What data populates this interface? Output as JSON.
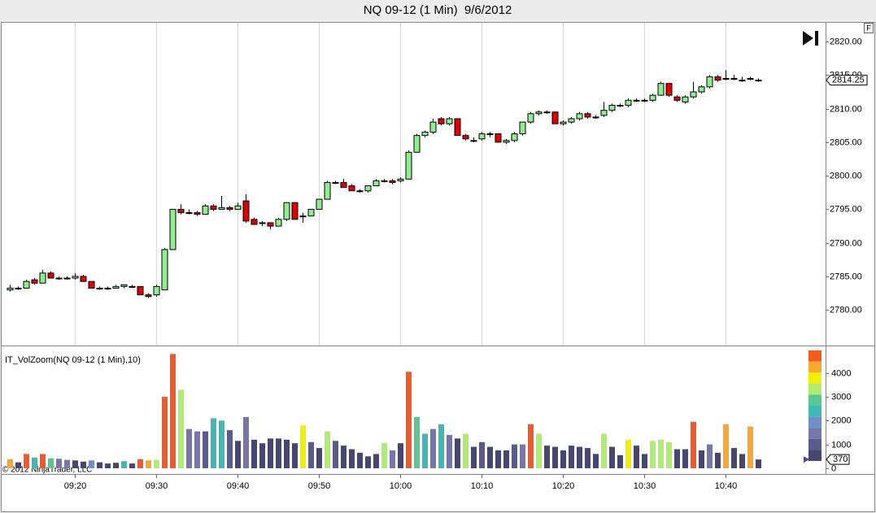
{
  "chart_data": [
    {
      "type": "candlestick",
      "title": "NQ 09-12 (1 Min)  9/6/2012",
      "x": [
        552,
        553,
        554,
        555,
        556,
        557,
        558,
        559,
        560,
        561,
        562,
        563,
        564,
        565,
        566,
        567,
        568,
        569,
        570,
        571,
        572,
        573,
        574,
        575,
        576,
        577,
        578,
        579,
        580,
        581,
        582,
        583,
        584,
        585,
        586,
        587,
        588,
        589,
        590,
        591,
        592,
        593,
        594,
        595,
        596,
        597,
        598,
        599,
        600,
        601,
        602,
        603,
        604,
        605,
        606,
        607,
        608,
        609,
        610,
        611,
        612,
        613,
        614,
        615,
        616,
        617,
        618,
        619,
        620,
        621,
        622,
        623,
        624,
        625,
        626,
        627,
        628,
        629,
        630,
        631,
        632,
        633,
        634,
        635,
        636,
        637,
        638,
        639,
        640,
        641,
        642,
        643,
        644
      ],
      "open": [
        2783.0,
        2783.25,
        2783.25,
        2784.5,
        2784.0,
        2785.5,
        2784.75,
        2784.75,
        2784.75,
        2785.0,
        2784.25,
        2783.25,
        2783.25,
        2783.25,
        2783.5,
        2783.5,
        2783.5,
        2782.25,
        2782.25,
        2783.0,
        2789.0,
        2795.0,
        2794.5,
        2794.5,
        2794.25,
        2795.5,
        2795.0,
        2795.25,
        2795.0,
        2796.25,
        2793.5,
        2793.0,
        2793.0,
        2792.5,
        2793.5,
        2796.0,
        2794.0,
        2794.0,
        2795.0,
        2796.5,
        2799.0,
        2799.0,
        2798.5,
        2797.75,
        2797.75,
        2798.5,
        2799.25,
        2799.25,
        2799.25,
        2799.5,
        2803.5,
        2806.0,
        2806.5,
        2808.5,
        2807.75,
        2808.5,
        2806.0,
        2805.25,
        2805.5,
        2806.25,
        2806.25,
        2805.0,
        2805.25,
        2806.25,
        2808.0,
        2809.25,
        2809.5,
        2809.5,
        2807.75,
        2808.0,
        2808.5,
        2809.25,
        2808.75,
        2809.0,
        2809.75,
        2810.5,
        2810.5,
        2811.25,
        2811.25,
        2811.25,
        2812.0,
        2813.75,
        2811.75,
        2811.0,
        2811.75,
        2812.5,
        2813.25,
        2814.75,
        2814.5,
        2814.5,
        2814.25,
        2814.5,
        2814.25
      ],
      "high": [
        2783.75,
        2783.5,
        2784.5,
        2784.75,
        2786.0,
        2785.75,
        2785.0,
        2785.0,
        2785.5,
        2785.25,
        2784.25,
        2783.5,
        2783.5,
        2783.75,
        2783.75,
        2783.75,
        2783.5,
        2782.5,
        2783.75,
        2789.25,
        2795.0,
        2795.75,
        2795.0,
        2794.75,
        2795.75,
        2795.75,
        2797.0,
        2795.5,
        2796.0,
        2797.25,
        2793.75,
        2793.25,
        2793.0,
        2793.75,
        2796.0,
        2796.0,
        2794.5,
        2795.0,
        2796.5,
        2799.25,
        2799.25,
        2799.5,
        2798.75,
        2798.0,
        2798.5,
        2799.5,
        2799.5,
        2799.5,
        2799.75,
        2803.75,
        2806.25,
        2806.75,
        2808.5,
        2808.75,
        2808.75,
        2808.5,
        2806.25,
        2805.75,
        2806.5,
        2806.5,
        2806.25,
        2805.5,
        2806.5,
        2808.0,
        2809.5,
        2809.75,
        2809.75,
        2809.5,
        2808.25,
        2808.75,
        2809.5,
        2809.5,
        2809.0,
        2811.0,
        2810.75,
        2810.75,
        2811.5,
        2811.5,
        2811.5,
        2812.25,
        2814.0,
        2813.75,
        2812.0,
        2812.0,
        2814.0,
        2813.5,
        2815.0,
        2815.0,
        2815.75,
        2815.0,
        2814.75,
        2814.75,
        2814.5
      ],
      "low": [
        2782.75,
        2783.0,
        2783.25,
        2783.75,
        2784.0,
        2784.75,
        2784.5,
        2784.5,
        2784.5,
        2784.25,
        2783.25,
        2783.0,
        2783.0,
        2783.25,
        2783.25,
        2783.25,
        2782.25,
        2781.75,
        2782.0,
        2783.0,
        2789.0,
        2794.25,
        2794.25,
        2794.0,
        2794.25,
        2794.75,
        2795.0,
        2794.75,
        2795.0,
        2793.0,
        2792.75,
        2792.5,
        2792.0,
        2792.5,
        2793.25,
        2793.5,
        2793.0,
        2794.0,
        2795.0,
        2796.5,
        2798.75,
        2798.25,
        2797.75,
        2797.5,
        2797.5,
        2798.5,
        2799.0,
        2798.75,
        2799.0,
        2799.5,
        2803.5,
        2805.75,
        2806.25,
        2807.5,
        2807.5,
        2806.0,
        2805.25,
        2805.0,
        2805.25,
        2805.75,
        2805.0,
        2804.75,
        2805.0,
        2806.0,
        2807.75,
        2809.0,
        2809.25,
        2807.75,
        2807.5,
        2807.75,
        2808.25,
        2808.5,
        2808.5,
        2808.75,
        2809.5,
        2810.25,
        2810.25,
        2811.0,
        2811.0,
        2811.0,
        2812.0,
        2811.75,
        2811.0,
        2810.75,
        2811.5,
        2812.25,
        2813.0,
        2814.0,
        2814.25,
        2814.25,
        2814.0,
        2814.25,
        2814.0
      ],
      "close": [
        2783.25,
        2783.25,
        2784.25,
        2784.0,
        2785.5,
        2784.75,
        2784.75,
        2784.75,
        2785.0,
        2784.25,
        2783.25,
        2783.25,
        2783.25,
        2783.5,
        2783.75,
        2783.5,
        2782.25,
        2782.0,
        2783.5,
        2789.0,
        2795.0,
        2794.5,
        2794.5,
        2794.25,
        2795.5,
        2795.0,
        2795.25,
        2795.0,
        2795.5,
        2793.25,
        2792.75,
        2793.0,
        2792.5,
        2793.5,
        2796.0,
        2793.5,
        2794.0,
        2795.0,
        2796.5,
        2799.0,
        2799.0,
        2798.25,
        2797.75,
        2797.75,
        2798.5,
        2799.25,
        2799.25,
        2799.0,
        2799.5,
        2803.5,
        2806.0,
        2806.5,
        2808.0,
        2807.75,
        2808.5,
        2806.0,
        2805.5,
        2805.25,
        2806.25,
        2806.25,
        2805.0,
        2805.25,
        2806.25,
        2808.0,
        2809.25,
        2809.5,
        2809.5,
        2807.75,
        2808.0,
        2808.5,
        2809.25,
        2808.75,
        2808.75,
        2809.75,
        2810.5,
        2810.5,
        2811.25,
        2811.25,
        2811.25,
        2812.0,
        2813.75,
        2812.0,
        2811.25,
        2811.75,
        2812.5,
        2813.25,
        2814.75,
        2814.25,
        2814.5,
        2814.5,
        2814.25,
        2814.5,
        2814.25
      ],
      "up_color": "#90ee90",
      "down_color": "#dd0000",
      "xlim": [
        551,
        652.3
      ],
      "xticks": [
        {
          "value": 560,
          "label": "09:20"
        },
        {
          "value": 570,
          "label": "09:30"
        },
        {
          "value": 580,
          "label": "09:40"
        },
        {
          "value": 590,
          "label": "09:50"
        },
        {
          "value": 600,
          "label": "10:00"
        },
        {
          "value": 610,
          "label": "10:10"
        },
        {
          "value": 620,
          "label": "10:20"
        },
        {
          "value": 630,
          "label": "10:30"
        },
        {
          "value": 640,
          "label": "10:40"
        }
      ],
      "ylim": [
        2774.7,
        2822.8
      ],
      "yticks": [
        {
          "value": 2780,
          "label": "2780.00"
        },
        {
          "value": 2785,
          "label": "2785.00"
        },
        {
          "value": 2790,
          "label": "2790.00"
        },
        {
          "value": 2795,
          "label": "2795.00"
        },
        {
          "value": 2800,
          "label": "2800.00"
        },
        {
          "value": 2805,
          "label": "2805.00"
        },
        {
          "value": 2810,
          "label": "2810.00"
        },
        {
          "value": 2815,
          "label": "2815.00"
        },
        {
          "value": 2820,
          "label": "2820.00"
        }
      ],
      "grid": true,
      "button_label": "F"
    },
    {
      "type": "bar",
      "title": "IT_VolZoom(NQ 09-12 (1 Min),10)",
      "values": [
        380,
        250,
        600,
        450,
        600,
        420,
        400,
        350,
        330,
        280,
        330,
        250,
        200,
        230,
        300,
        200,
        380,
        330,
        350,
        3000,
        4800,
        3300,
        1650,
        1550,
        1550,
        2100,
        2000,
        1600,
        1150,
        2150,
        1200,
        1050,
        1250,
        1250,
        1200,
        1050,
        1800,
        1100,
        850,
        1550,
        1150,
        950,
        800,
        650,
        500,
        600,
        1050,
        750,
        1050,
        4050,
        2150,
        1450,
        1650,
        1850,
        1400,
        1250,
        1450,
        900,
        1100,
        900,
        750,
        750,
        1000,
        1000,
        1850,
        1450,
        950,
        900,
        750,
        950,
        900,
        850,
        600,
        1450,
        900,
        550,
        1200,
        950,
        600,
        1150,
        1200,
        1100,
        800,
        800,
        1950,
        750,
        1000,
        650,
        1850,
        850,
        600,
        1750,
        370
      ],
      "colors": [
        "#f8a830",
        "#464673",
        "#f05a28",
        "#40b8b8",
        "#f05a28",
        "#58c890",
        "#7676ab",
        "#7676ab",
        "#464673",
        "#464673",
        "#6e90c8",
        "#464673",
        "#464673",
        "#464673",
        "#40b8b8",
        "#464673",
        "#f05a28",
        "#f8a830",
        "#b0ec70",
        "#f05a28",
        "#f05a28",
        "#b0ec70",
        "#7676ab",
        "#7676ab",
        "#5a5a8c",
        "#40b8b8",
        "#40b8b8",
        "#5a5a8c",
        "#464673",
        "#7676ab",
        "#464673",
        "#464673",
        "#464673",
        "#464673",
        "#464673",
        "#464673",
        "#f0f000",
        "#5a5a8c",
        "#464673",
        "#b0ec70",
        "#5a5a8c",
        "#464673",
        "#464673",
        "#464673",
        "#464673",
        "#464673",
        "#b0ec70",
        "#7676ab",
        "#464673",
        "#f05a28",
        "#58c890",
        "#40b8b8",
        "#7676ab",
        "#40b8b8",
        "#7676ab",
        "#464673",
        "#b0ec70",
        "#464673",
        "#5a5a8c",
        "#464673",
        "#464673",
        "#464673",
        "#5a5a8c",
        "#7676ab",
        "#f05a28",
        "#b0ec70",
        "#464673",
        "#464673",
        "#464673",
        "#464673",
        "#464673",
        "#464673",
        "#464673",
        "#b0ec70",
        "#464673",
        "#464673",
        "#f0f000",
        "#464673",
        "#464673",
        "#b0ec70",
        "#b0ec70",
        "#b0ec70",
        "#464673",
        "#464673",
        "#f05a28",
        "#464673",
        "#7676ab",
        "#464673",
        "#f8a830",
        "#464673",
        "#464673",
        "#f8a830",
        "#464673"
      ],
      "color_scale": [
        "#f55a1e",
        "#fda832",
        "#f0f000",
        "#b0ec70",
        "#58c890",
        "#40b8b8",
        "#6e90c8",
        "#7676ab",
        "#5a5a8c",
        "#464673"
      ],
      "ylim": [
        -240,
        5085
      ],
      "yticks": [
        0,
        1000,
        2000,
        3000,
        4000
      ],
      "footer": "© 2012 NinjaTrader, LLC"
    }
  ]
}
